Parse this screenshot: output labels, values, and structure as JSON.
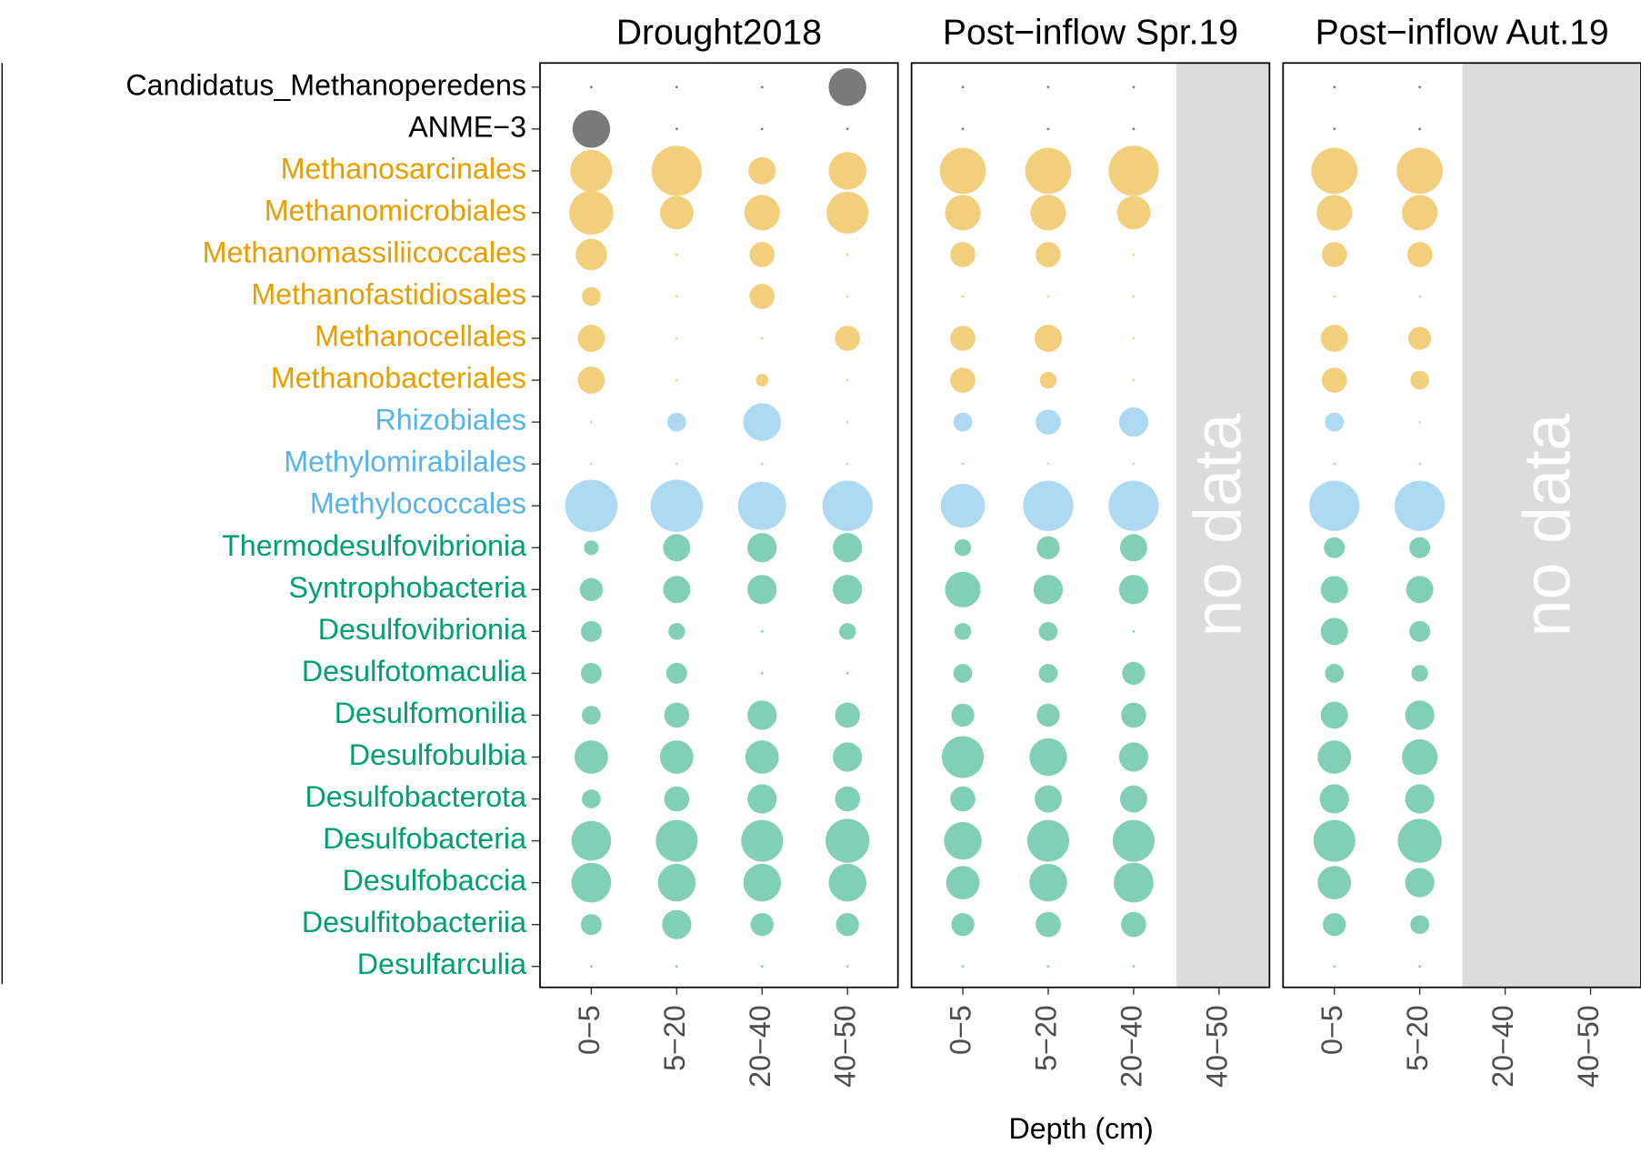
{
  "chart_data": {
    "type": "bubble",
    "x_label": "Depth (cm)",
    "categories": [
      "Candidatus_Methanoperedens",
      "ANME−3",
      "Methanosarcinales",
      "Methanomicrobiales",
      "Methanomassiliicoccales",
      "Methanofastidiosales",
      "Methanocellales",
      "Methanobacteriales",
      "Rhizobiales",
      "Methylomirabilales",
      "Methylococcales",
      "Thermodesulfovibrionia",
      "Syntrophobacteria",
      "Desulfovibrionia",
      "Desulfotomaculia",
      "Desulfomonilia",
      "Desulfobulbia",
      "Desulfobacterota",
      "Desulfobacteria",
      "Desulfobaccia",
      "Desulfitobacteriia",
      "Desulfarculia"
    ],
    "label_colors": [
      "#000000",
      "#000000",
      "#E69F00",
      "#E69F00",
      "#E69F00",
      "#E69F00",
      "#E69F00",
      "#E69F00",
      "#56B4E9",
      "#56B4E9",
      "#56B4E9",
      "#009E73",
      "#009E73",
      "#009E73",
      "#009E73",
      "#009E73",
      "#009E73",
      "#009E73",
      "#009E73",
      "#009E73",
      "#009E73",
      "#009E73"
    ],
    "marker_colors": [
      "#7a7a7a",
      "#7a7a7a",
      "#f2cf7d",
      "#f2cf7d",
      "#f2cf7d",
      "#f2cf7d",
      "#f2cf7d",
      "#f2cf7d",
      "#aed9f3",
      "#aed9f3",
      "#aed9f3",
      "#80cfb6",
      "#80cfb6",
      "#80cfb6",
      "#80cfb6",
      "#80cfb6",
      "#80cfb6",
      "#80cfb6",
      "#80cfb6",
      "#80cfb6",
      "#80cfb6",
      "#80cfb6"
    ],
    "panels": [
      {
        "title": "Drought2018",
        "x": [
          "0−5",
          "5−20",
          "20−40",
          "40−50"
        ],
        "values": [
          [
            1.2,
            1.2,
            1.2,
            18
          ],
          [
            18,
            1.2,
            1.2,
            1.2
          ],
          [
            20,
            24,
            13,
            18
          ],
          [
            21,
            16,
            17,
            20
          ],
          [
            15,
            1.2,
            12,
            1.2
          ],
          [
            9,
            1.2,
            12,
            1.2
          ],
          [
            13,
            1.2,
            1.2,
            12
          ],
          [
            13,
            1.2,
            6,
            1.2
          ],
          [
            1.2,
            9,
            18,
            1.2
          ],
          [
            1.2,
            1.2,
            1.2,
            1.2
          ],
          [
            25,
            25,
            23,
            24
          ],
          [
            7,
            13,
            14,
            14
          ],
          [
            11,
            13,
            14,
            14
          ],
          [
            10,
            8,
            1.2,
            8
          ],
          [
            10,
            10,
            1.2,
            1.2
          ],
          [
            9,
            12,
            14,
            12
          ],
          [
            16,
            16,
            16,
            14
          ],
          [
            9,
            12,
            14,
            12
          ],
          [
            19,
            20,
            20,
            21
          ],
          [
            19,
            18,
            18,
            18
          ],
          [
            10,
            14,
            11,
            11
          ],
          [
            1.2,
            1.2,
            1.2,
            1.2
          ]
        ]
      },
      {
        "title": "Post−inflow Spr.19",
        "x": [
          "0−5",
          "5−20",
          "20−40",
          "40−50"
        ],
        "annotation": "no data",
        "values": [
          [
            1.2,
            1.2,
            1.2,
            null
          ],
          [
            1.2,
            1.2,
            1.2,
            null
          ],
          [
            22,
            22,
            24,
            null
          ],
          [
            17,
            17,
            16,
            null
          ],
          [
            12,
            12,
            1.2,
            null
          ],
          [
            1.2,
            1.2,
            1.2,
            null
          ],
          [
            12,
            13,
            1.2,
            null
          ],
          [
            12,
            8,
            1.2,
            null
          ],
          [
            9,
            12,
            14,
            null
          ],
          [
            1.2,
            1.2,
            1.2,
            null
          ],
          [
            21,
            24,
            24,
            null
          ],
          [
            8,
            11,
            13,
            null
          ],
          [
            17,
            14,
            14,
            null
          ],
          [
            8,
            9,
            1.2,
            null
          ],
          [
            9,
            9,
            11,
            null
          ],
          [
            11,
            11,
            12,
            null
          ],
          [
            20,
            18,
            14,
            null
          ],
          [
            12,
            13,
            13,
            null
          ],
          [
            18,
            20,
            20,
            null
          ],
          [
            16,
            18,
            19,
            null
          ],
          [
            11,
            12,
            12,
            null
          ],
          [
            1.2,
            1.2,
            1.2,
            null
          ]
        ]
      },
      {
        "title": "Post−inflow Aut.19",
        "x": [
          "0−5",
          "5−20",
          "20−40",
          "40−50"
        ],
        "annotation": "no data",
        "values": [
          [
            1.2,
            1.2,
            null,
            null
          ],
          [
            1.2,
            1.2,
            null,
            null
          ],
          [
            22,
            22,
            null,
            null
          ],
          [
            17,
            17,
            null,
            null
          ],
          [
            12,
            12,
            null,
            null
          ],
          [
            1.2,
            1.2,
            null,
            null
          ],
          [
            13,
            11,
            null,
            null
          ],
          [
            12,
            9,
            null,
            null
          ],
          [
            9,
            1.2,
            null,
            null
          ],
          [
            1.2,
            1.2,
            null,
            null
          ],
          [
            24,
            24,
            null,
            null
          ],
          [
            10,
            10,
            null,
            null
          ],
          [
            13,
            13,
            null,
            null
          ],
          [
            13,
            10,
            null,
            null
          ],
          [
            9,
            8,
            null,
            null
          ],
          [
            13,
            14,
            null,
            null
          ],
          [
            16,
            17,
            null,
            null
          ],
          [
            14,
            14,
            null,
            null
          ],
          [
            20,
            21,
            null,
            null
          ],
          [
            16,
            14,
            null,
            null
          ],
          [
            11,
            9,
            null,
            null
          ],
          [
            1.2,
            1.2,
            null,
            null
          ]
        ]
      }
    ]
  }
}
